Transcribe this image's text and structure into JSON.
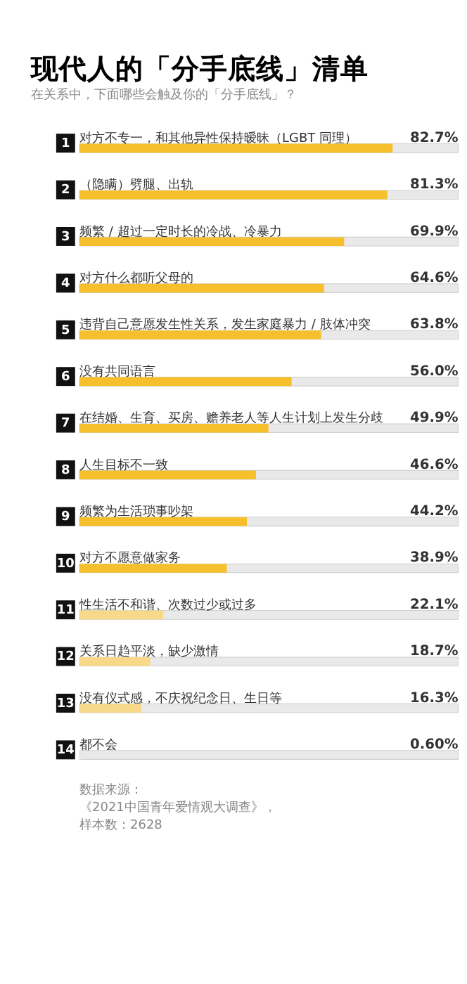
{
  "chart_data": {
    "type": "bar",
    "orientation": "horizontal",
    "title": "现代人的「分手底线」清单",
    "subtitle": "在关系中，下面哪些会触及你的「分手底线」？",
    "categories": [
      "对方不专一，和其他异性保持暧昧（LGBT 同理）",
      "（隐瞒）劈腿、出轨",
      "频繁 / 超过一定时长的冷战、冷暴力",
      "对方什么都听父母的",
      "违背自己意愿发生性关系，发生家庭暴力 / 肢体冲突",
      "没有共同语言",
      "在结婚、生育、买房、赡养老人等人生计划上发生分歧",
      "人生目标不一致",
      "频繁为生活琐事吵架",
      "对方不愿意做家务",
      "性生活不和谐、次数过少或过多",
      "关系日趋平淡，缺少激情",
      "没有仪式感，不庆祝纪念日、生日等",
      "都不会"
    ],
    "values": [
      82.7,
      81.3,
      69.9,
      64.6,
      63.8,
      56.0,
      49.9,
      46.6,
      44.2,
      38.9,
      22.1,
      18.7,
      16.3,
      0.6
    ],
    "value_labels": [
      "82.7%",
      "81.3%",
      "69.9%",
      "64.6%",
      "63.8%",
      "56.0%",
      "49.9%",
      "46.6%",
      "44.2%",
      "38.9%",
      "22.1%",
      "18.7%",
      "16.3%",
      "0.60%"
    ],
    "colors": [
      "#f5c02c",
      "#f5c02c",
      "#f5c02c",
      "#f5c02c",
      "#f5c02c",
      "#f5c02c",
      "#f5c02c",
      "#f5c02c",
      "#f5c02c",
      "#f5c02c",
      "#f8d98a",
      "#f8d98a",
      "#f8d98a",
      "#e8e8e8"
    ],
    "xlim": [
      0,
      100
    ],
    "tick_labels": false,
    "grid": false,
    "annotations": [
      "1",
      "2",
      "3",
      "4",
      "5",
      "6",
      "7",
      "8",
      "9",
      "10",
      "11",
      "12",
      "13",
      "14",
      "数据来源：",
      "《2021中国青年爱情观大调查》，",
      "样本数：2628"
    ]
  }
}
